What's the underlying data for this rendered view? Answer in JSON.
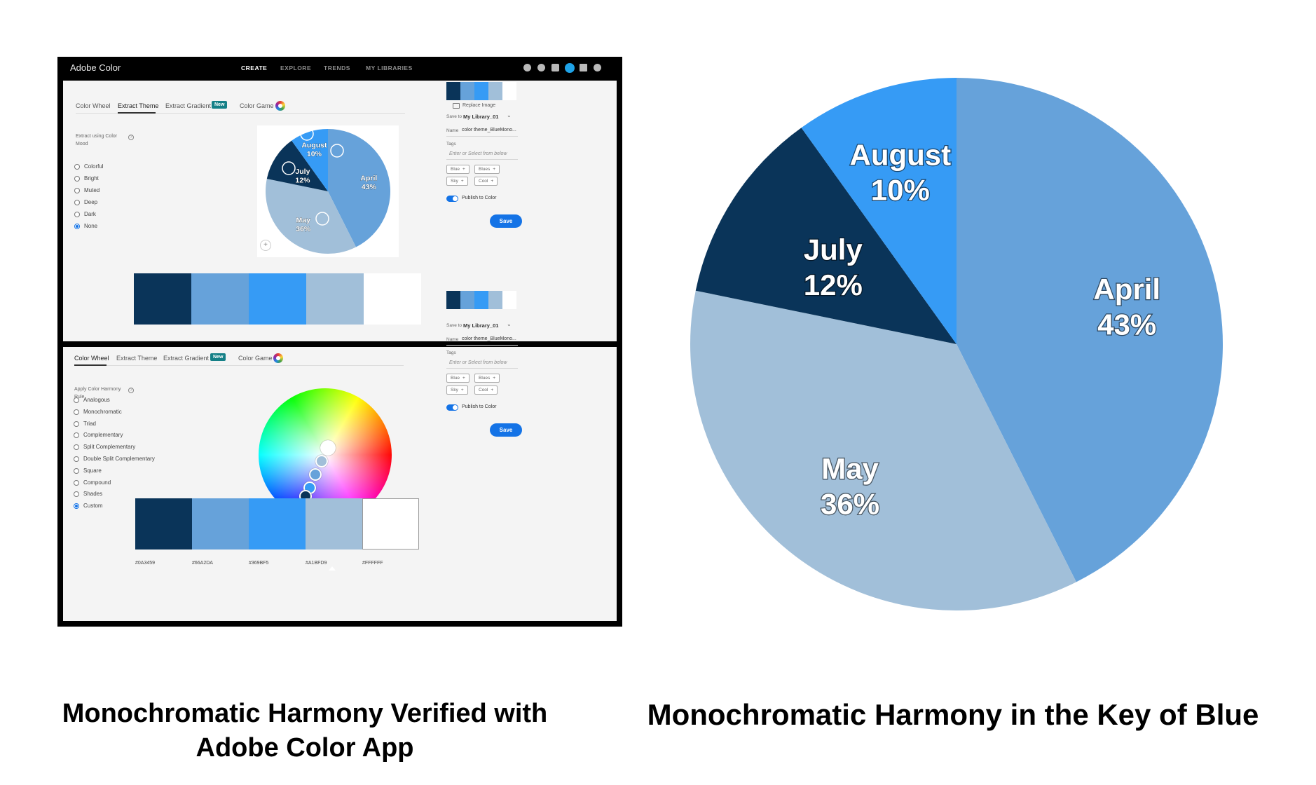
{
  "app": {
    "brand": "Adobe Color",
    "nav": [
      "CREATE",
      "EXPLORE",
      "TRENDS",
      "MY LIBRARIES"
    ]
  },
  "panel1": {
    "tabs": [
      "Color Wheel",
      "Extract Theme",
      "Extract Gradient",
      "Color Game"
    ],
    "new_badge": "New",
    "replace_image": "Replace Image",
    "side_title_1": "Extract using Color",
    "side_title_2": "Mood",
    "moods": [
      "Colorful",
      "Bright",
      "Muted",
      "Deep",
      "Dark",
      "None"
    ],
    "selected_mood": "None"
  },
  "panel2": {
    "tabs": [
      "Color Wheel",
      "Extract Theme",
      "Extract Gradient",
      "Color Game"
    ],
    "new_badge": "New",
    "side_title_1": "Apply Color Harmony",
    "side_title_2": "Rule",
    "rules": [
      "Analogous",
      "Monochromatic",
      "Triad",
      "Complementary",
      "Split Complementary",
      "Double Split Complementary",
      "Square",
      "Compound",
      "Shades",
      "Custom"
    ],
    "selected_rule": "Custom",
    "hex_codes": [
      "#0A3459",
      "#66A2DA",
      "#369BF5",
      "#A1BFD9",
      "#FFFFFF"
    ]
  },
  "right_panel": {
    "save_to_label": "Save to",
    "library": "My Library_01",
    "name_label": "Name",
    "name_value": "color theme_BlueMono...",
    "tags_label": "Tags",
    "tags_placeholder": "Enter or Select from below",
    "tags": [
      "Blue",
      "Blues",
      "Sky",
      "Cool"
    ],
    "publish": "Publish to Color",
    "save": "Save"
  },
  "theme_colors": [
    "#0A3459",
    "#66A2DA",
    "#369BF5",
    "#A1BFD9",
    "#FFFFFF"
  ],
  "chart_data": {
    "type": "pie",
    "categories": [
      "April",
      "May",
      "July",
      "August"
    ],
    "values": [
      43,
      36,
      12,
      10
    ],
    "labels": [
      "43%",
      "36%",
      "12%",
      "10%"
    ],
    "colors": [
      "#66A2DA",
      "#A1BFD9",
      "#0A3459",
      "#369BF5"
    ]
  },
  "captions": {
    "left_line1": "Monochromatic Harmony Verified with",
    "left_line2": "Adobe Color App",
    "right": "Monochromatic Harmony in the Key of Blue"
  }
}
